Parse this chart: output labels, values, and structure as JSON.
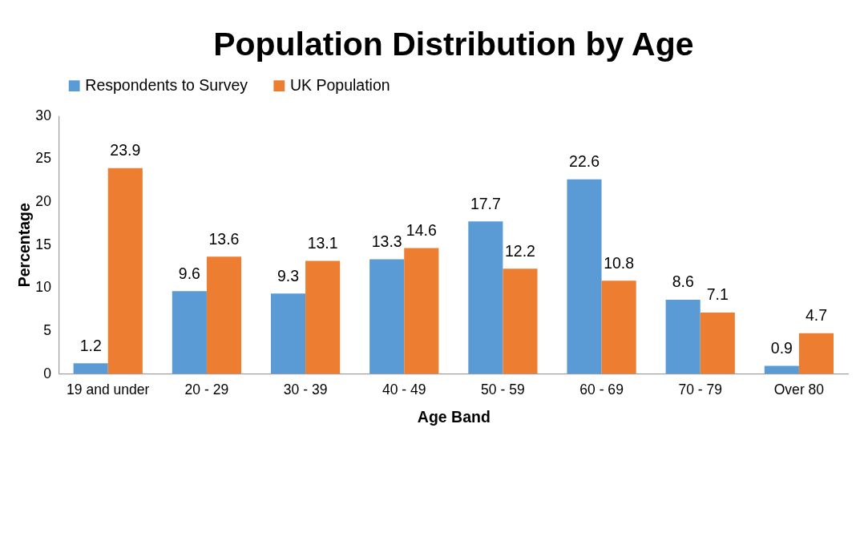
{
  "chart_data": {
    "type": "bar",
    "title": "Population Distribution by Age",
    "xlabel": "Age Band",
    "ylabel": "Percentage",
    "categories": [
      "19 and under",
      "20 - 29",
      "30 - 39",
      "40 - 49",
      "50 - 59",
      "60 - 69",
      "70 - 79",
      "Over 80"
    ],
    "series": [
      {
        "name": "Respondents to Survey",
        "color": "#5b9bd5",
        "values": [
          1.2,
          9.6,
          9.3,
          13.3,
          17.7,
          22.6,
          8.6,
          0.9
        ]
      },
      {
        "name": "UK Population",
        "color": "#ed7d31",
        "values": [
          23.9,
          13.6,
          13.1,
          14.6,
          12.2,
          10.8,
          7.1,
          4.7
        ]
      }
    ],
    "ylim": [
      0,
      30
    ],
    "yticks": [
      0,
      5,
      10,
      15,
      20,
      25,
      30
    ],
    "grid": false,
    "legend": "top",
    "data_labels": true
  }
}
